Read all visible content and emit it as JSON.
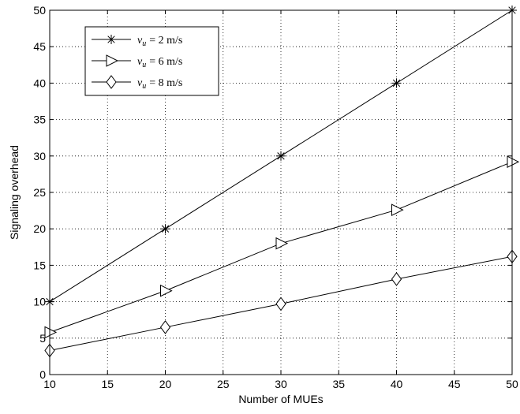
{
  "chart_data": {
    "type": "line",
    "title": "",
    "xlabel": "Number of MUEs",
    "ylabel": "Signaling overhead",
    "xlim": [
      10,
      50
    ],
    "ylim": [
      0,
      50
    ],
    "xticks": [
      10,
      15,
      20,
      25,
      30,
      35,
      40,
      45,
      50
    ],
    "yticks": [
      0,
      5,
      10,
      15,
      20,
      25,
      30,
      35,
      40,
      45,
      50
    ],
    "grid": true,
    "legend_position": "top-left",
    "x": [
      10,
      20,
      30,
      40,
      50
    ],
    "series": [
      {
        "name": "v_u = 2 m/s",
        "legend": {
          "var": "v",
          "sub": "u",
          "value": "= 2 m/s"
        },
        "marker": "asterisk",
        "color": "#000000",
        "values": [
          10,
          20,
          30,
          40,
          50
        ]
      },
      {
        "name": "v_u = 6 m/s",
        "legend": {
          "var": "v",
          "sub": "u",
          "value": "= 6 m/s"
        },
        "marker": "triangle-right",
        "color": "#000000",
        "values": [
          5.8,
          11.5,
          18,
          22.6,
          29.2
        ]
      },
      {
        "name": "v_u = 8 m/s",
        "legend": {
          "var": "v",
          "sub": "u",
          "value": "= 8 m/s"
        },
        "marker": "diamond",
        "color": "#000000",
        "values": [
          3.3,
          6.5,
          9.7,
          13.1,
          16.2
        ]
      }
    ]
  }
}
